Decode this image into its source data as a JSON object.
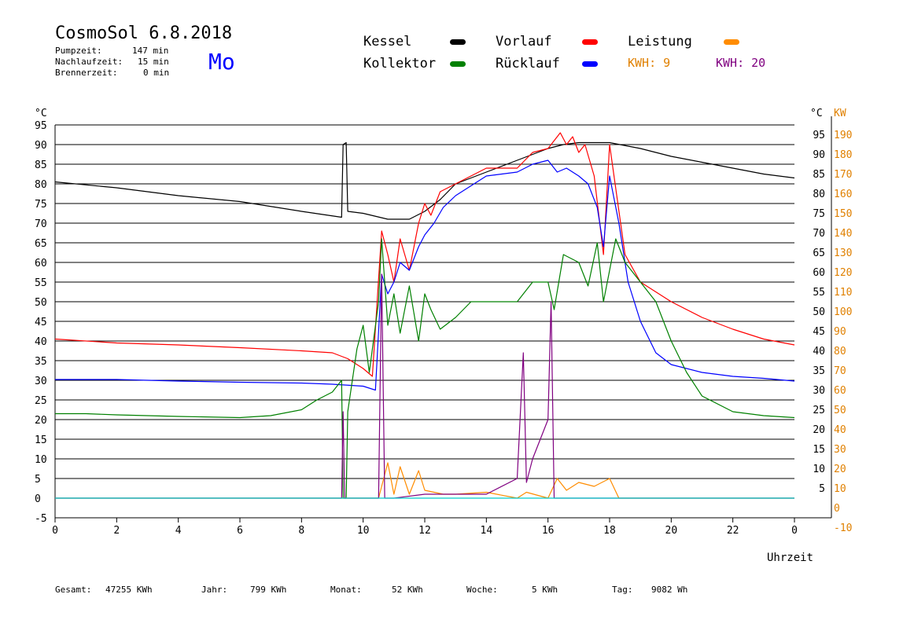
{
  "header": {
    "title": "CosmoSol 6.8.2018",
    "day": "Mo",
    "stats": [
      {
        "label": "Pumpzeit:",
        "value": "147 min"
      },
      {
        "label": "Nachlaufzeit:",
        "value": "15 min"
      },
      {
        "label": "Brennerzeit:",
        "value": "0 min"
      }
    ]
  },
  "legend": {
    "kessel": "Kessel",
    "kollektor": "Kollektor",
    "vorlauf": "Vorlauf",
    "ruecklauf": "Rücklauf",
    "leistung": "Leistung",
    "kwh1": "KWH: 9",
    "kwh2": "KWH: 20"
  },
  "footer": {
    "gesamt_label": "Gesamt:",
    "gesamt_value": "47255 KWh",
    "jahr_label": "Jahr:",
    "jahr_value": "799 KWh",
    "monat_label": "Monat:",
    "monat_value": "52 KWh",
    "woche_label": "Woche:",
    "woche_value": "5 KWh",
    "tag_label": "Tag:",
    "tag_value": "9082 Wh"
  },
  "chart_data": {
    "type": "line",
    "xlabel": "Uhrzeit",
    "ylabel_left": "°C",
    "ylabel_right": "KW",
    "xlim": [
      0,
      24
    ],
    "ylim": [
      -5,
      95
    ],
    "ylim_right": [
      -10,
      190
    ],
    "x_ticks": [
      "0",
      "2",
      "4",
      "6",
      "8",
      "10",
      "12",
      "14",
      "16",
      "18",
      "20",
      "22",
      "0"
    ],
    "y_ticks_left": [
      "95",
      "90",
      "85",
      "80",
      "75",
      "70",
      "65",
      "60",
      "55",
      "50",
      "45",
      "40",
      "35",
      "30",
      "25",
      "20",
      "15",
      "10",
      "5",
      "0",
      "-5"
    ],
    "y_ticks_right_temp": [
      "95",
      "90",
      "85",
      "80",
      "75",
      "70",
      "65",
      "60",
      "55",
      "50",
      "45",
      "40",
      "35",
      "30",
      "25",
      "20",
      "15",
      "10",
      "5"
    ],
    "y_ticks_right_kw": [
      "190",
      "180",
      "170",
      "160",
      "150",
      "140",
      "130",
      "120",
      "110",
      "100",
      "90",
      "80",
      "70",
      "60",
      "50",
      "40",
      "30",
      "20",
      "10",
      "0",
      "-10"
    ],
    "grid": true,
    "colors": {
      "kessel": "#000000",
      "kollektor": "#008000",
      "vorlauf": "#ff0000",
      "ruecklauf": "#0000ff",
      "leistung": "#ff8c00",
      "kwh2": "#800080",
      "baseline": "#00cccc",
      "right_axis": "#e08000"
    },
    "series": [
      {
        "name": "Kessel",
        "key": "kessel",
        "x": [
          0,
          2,
          4,
          6,
          8,
          9.3,
          9.35,
          9.45,
          9.5,
          10,
          10.8,
          11.5,
          12,
          12.5,
          13,
          14,
          15,
          16,
          16.5,
          17,
          18,
          19,
          20,
          21,
          22,
          23,
          24
        ],
        "y": [
          80.5,
          79,
          77,
          75.5,
          73,
          71.5,
          90,
          90.5,
          73,
          72.5,
          71,
          71,
          73,
          76,
          80,
          83,
          86,
          89,
          90,
          90.5,
          90.5,
          89,
          87,
          85.5,
          84,
          82.5,
          81.5
        ]
      },
      {
        "name": "Vorlauf",
        "key": "vorlauf",
        "x": [
          0,
          2,
          4,
          6,
          8,
          9,
          9.5,
          10,
          10.3,
          10.6,
          10.8,
          11,
          11.2,
          11.5,
          11.8,
          12,
          12.2,
          12.5,
          13,
          14,
          15,
          15.5,
          16,
          16.2,
          16.4,
          16.6,
          16.8,
          17,
          17.2,
          17.5,
          17.8,
          18,
          18.5,
          19,
          20,
          21,
          22,
          23,
          24
        ],
        "y": [
          40.5,
          39.5,
          39,
          38.3,
          37.5,
          37,
          35.5,
          33,
          31,
          68,
          62,
          55,
          66,
          58,
          70,
          75,
          72,
          78,
          80,
          84,
          84,
          88,
          89,
          91,
          93,
          90,
          92,
          88,
          90,
          82,
          62,
          90,
          62,
          55,
          50,
          46,
          43,
          40.5,
          39
        ]
      },
      {
        "name": "Rücklauf",
        "key": "ruecklauf",
        "x": [
          0,
          2,
          4,
          6,
          8,
          9,
          10,
          10.4,
          10.6,
          10.8,
          11,
          11.2,
          11.5,
          11.8,
          12,
          12.3,
          12.6,
          13,
          14,
          15,
          15.5,
          16,
          16.3,
          16.6,
          17,
          17.3,
          17.6,
          17.8,
          18,
          18.3,
          18.6,
          19,
          19.5,
          20,
          21,
          22,
          23,
          24
        ],
        "y": [
          30.2,
          30.2,
          29.8,
          29.5,
          29.3,
          29,
          28.5,
          27.5,
          57,
          52,
          55,
          60,
          58,
          64,
          67,
          70,
          74,
          77,
          82,
          83,
          85,
          86,
          83,
          84,
          82,
          80,
          74,
          64,
          82,
          70,
          55,
          45,
          37,
          34,
          32,
          31,
          30.5,
          29.8
        ]
      },
      {
        "name": "Kollektor",
        "key": "kollektor",
        "x": [
          0,
          1,
          2,
          4,
          6,
          7,
          8,
          8.5,
          9,
          9.3,
          9.35,
          9.45,
          9.5,
          9.8,
          10,
          10.2,
          10.5,
          10.6,
          10.8,
          11,
          11.2,
          11.5,
          11.8,
          12,
          12.2,
          12.5,
          13,
          13.5,
          14,
          14.5,
          15,
          15.5,
          16,
          16.2,
          16.5,
          17,
          17.3,
          17.6,
          17.8,
          18,
          18.2,
          18.5,
          19,
          19.5,
          20,
          20.5,
          21,
          22,
          23,
          24
        ],
        "y": [
          21.5,
          21.5,
          21.2,
          20.8,
          20.5,
          21,
          22.5,
          25,
          27,
          30,
          0,
          0,
          22,
          38,
          44,
          32,
          50,
          66,
          44,
          52,
          42,
          54,
          40,
          52,
          48,
          43,
          46,
          50,
          50,
          50,
          50,
          55,
          55,
          48,
          62,
          60,
          54,
          65,
          50,
          58,
          66,
          60,
          55,
          50,
          40,
          32,
          26,
          22,
          21,
          20.5
        ]
      },
      {
        "name": "Leistung",
        "key": "leistung",
        "x": [
          0,
          10.5,
          10.8,
          11,
          11.2,
          11.5,
          11.8,
          12,
          12.3,
          12.6,
          13,
          14,
          15,
          15.3,
          16,
          16.3,
          16.6,
          17,
          17.5,
          18,
          18.3,
          19,
          24
        ],
        "y": [
          0,
          0,
          9,
          1,
          8,
          1,
          7,
          2,
          1.5,
          1,
          1,
          1.5,
          0,
          1.5,
          0,
          5,
          2,
          4,
          3,
          5,
          0,
          0,
          0
        ]
      },
      {
        "name": "KWH: 20",
        "key": "kwh2",
        "x": [
          0,
          9.2,
          9.3,
          9.35,
          9.4,
          9.5,
          10,
          10.5,
          10.6,
          10.7,
          11,
          12,
          12.5,
          13,
          14,
          15,
          15.2,
          15.3,
          15.5,
          16,
          16.1,
          16.2,
          16.3,
          17,
          18,
          24
        ],
        "y": [
          0,
          0,
          0,
          22,
          0,
          0,
          0,
          0,
          57,
          0,
          0,
          1,
          1,
          1,
          1,
          5,
          37,
          4,
          10,
          20,
          50,
          0,
          0,
          0,
          0,
          0
        ]
      },
      {
        "name": "",
        "key": "baseline",
        "x": [
          0,
          24
        ],
        "y": [
          0,
          0
        ]
      }
    ]
  }
}
